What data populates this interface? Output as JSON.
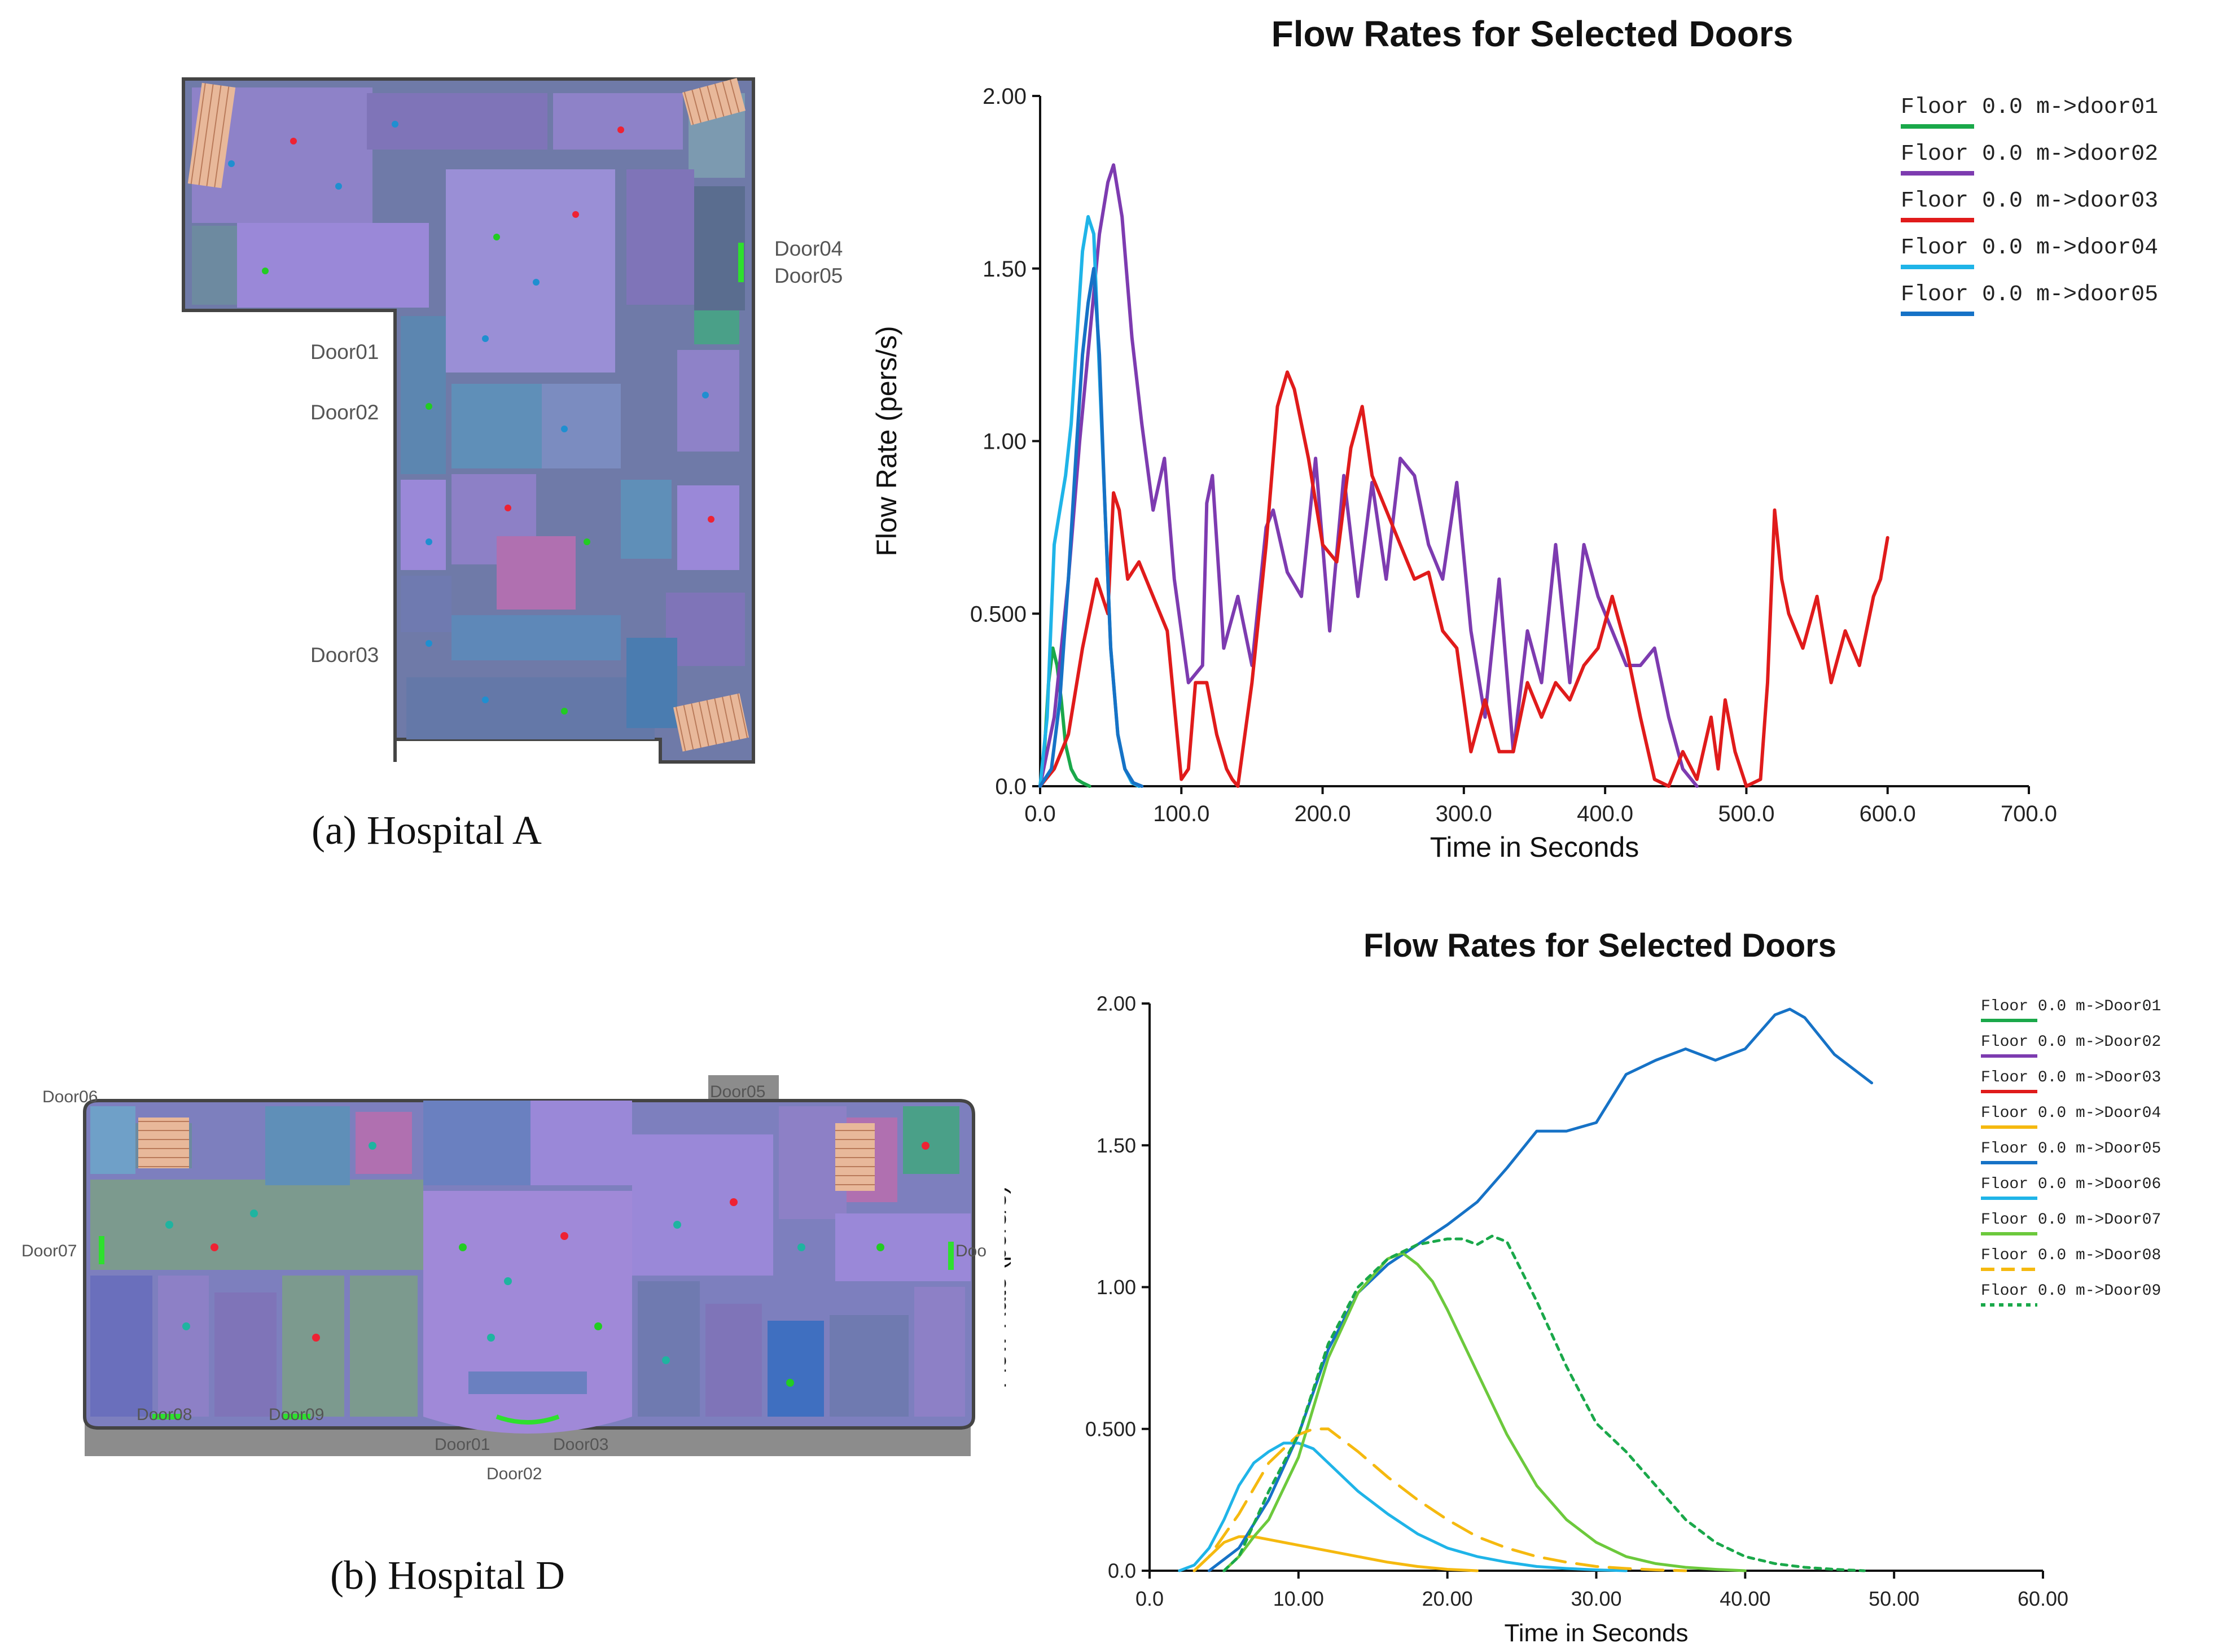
{
  "captions": {
    "a": "(a) Hospital A",
    "b": "(b) Hospital D"
  },
  "plan_a": {
    "door_labels": [
      "Door01",
      "Door02",
      "Door03",
      "Door04",
      "Door05"
    ]
  },
  "plan_b": {
    "door_labels": [
      "Door06",
      "Door05",
      "Door07",
      "Door08",
      "Door09",
      "Door01",
      "Door03",
      "Door02",
      "Doo"
    ]
  },
  "colors": {
    "door01": "#1aa84a",
    "door02": "#7d3bb0",
    "door03": "#e01b1b",
    "door04a": "#1fb4e8",
    "door05a": "#1672c6",
    "door04b": "#f5b90f",
    "door05b": "#1672c6",
    "door06b": "#1fb4e8",
    "door07b": "#6cc93c",
    "door08b": "#f5b90f",
    "door09b": "#1aa84a"
  },
  "chart_data": [
    {
      "type": "line",
      "title": "Flow Rates for Selected Doors",
      "xlabel": "Time in Seconds",
      "ylabel": "Flow Rate (pers/s)",
      "xlim": [
        0,
        700
      ],
      "ylim": [
        0,
        2
      ],
      "xticks": [
        "0.0",
        "100.0",
        "200.0",
        "300.0",
        "400.0",
        "500.0",
        "600.0",
        "700.0"
      ],
      "yticks": [
        "0.0",
        "0.500",
        "1.00",
        "1.50",
        "2.00"
      ],
      "legend_position": "top-right",
      "series": [
        {
          "name": "Floor 0.0 m->door01",
          "color": "#1aa84a",
          "style": "solid",
          "x": [
            0,
            3,
            6,
            9,
            12,
            15,
            18,
            22,
            26,
            30,
            35
          ],
          "y": [
            0,
            0.1,
            0.3,
            0.4,
            0.35,
            0.25,
            0.12,
            0.05,
            0.02,
            0.01,
            0
          ]
        },
        {
          "name": "Floor 0.0 m->door02",
          "color": "#7d3bb0",
          "style": "solid",
          "x": [
            0,
            10,
            20,
            28,
            35,
            42,
            48,
            52,
            58,
            65,
            72,
            80,
            88,
            95,
            105,
            115,
            118,
            122,
            130,
            140,
            150,
            160,
            165,
            175,
            185,
            195,
            205,
            215,
            225,
            235,
            245,
            255,
            265,
            275,
            285,
            295,
            305,
            315,
            325,
            335,
            345,
            355,
            365,
            375,
            385,
            395,
            405,
            415,
            425,
            435,
            445,
            455,
            465
          ],
          "y": [
            0,
            0.2,
            0.6,
            1.0,
            1.3,
            1.6,
            1.75,
            1.8,
            1.65,
            1.3,
            1.05,
            0.8,
            0.95,
            0.6,
            0.3,
            0.35,
            0.82,
            0.9,
            0.4,
            0.55,
            0.35,
            0.75,
            0.8,
            0.62,
            0.55,
            0.95,
            0.45,
            0.9,
            0.55,
            0.88,
            0.6,
            0.95,
            0.9,
            0.7,
            0.6,
            0.88,
            0.45,
            0.2,
            0.6,
            0.1,
            0.45,
            0.3,
            0.7,
            0.3,
            0.7,
            0.55,
            0.45,
            0.35,
            0.35,
            0.4,
            0.2,
            0.05,
            0
          ]
        },
        {
          "name": "Floor 0.0 m->door03",
          "color": "#e01b1b",
          "style": "solid",
          "x": [
            0,
            10,
            20,
            30,
            40,
            48,
            52,
            56,
            62,
            70,
            80,
            90,
            100,
            105,
            110,
            118,
            125,
            132,
            136,
            140,
            150,
            160,
            168,
            175,
            180,
            190,
            200,
            210,
            220,
            228,
            235,
            245,
            255,
            265,
            275,
            285,
            295,
            305,
            315,
            325,
            335,
            345,
            355,
            365,
            375,
            385,
            395,
            405,
            415,
            425,
            435,
            445,
            455,
            465,
            475,
            480,
            485,
            492,
            500,
            510,
            515,
            520,
            525,
            530,
            540,
            550,
            560,
            570,
            580,
            590,
            595,
            600
          ],
          "y": [
            0,
            0.05,
            0.15,
            0.4,
            0.6,
            0.5,
            0.85,
            0.8,
            0.6,
            0.65,
            0.55,
            0.45,
            0.02,
            0.05,
            0.3,
            0.3,
            0.15,
            0.05,
            0.02,
            0,
            0.3,
            0.7,
            1.1,
            1.2,
            1.15,
            0.95,
            0.7,
            0.65,
            0.98,
            1.1,
            0.9,
            0.8,
            0.7,
            0.6,
            0.62,
            0.45,
            0.4,
            0.1,
            0.25,
            0.1,
            0.1,
            0.3,
            0.2,
            0.3,
            0.25,
            0.35,
            0.4,
            0.55,
            0.4,
            0.2,
            0.02,
            0,
            0.1,
            0.02,
            0.2,
            0.05,
            0.25,
            0.1,
            0,
            0.02,
            0.3,
            0.8,
            0.6,
            0.5,
            0.4,
            0.55,
            0.3,
            0.45,
            0.35,
            0.55,
            0.6,
            0.72
          ]
        },
        {
          "name": "Floor 0.0 m->door04",
          "color": "#1fb4e8",
          "style": "solid",
          "x": [
            0,
            5,
            10,
            14,
            18,
            22,
            26,
            30,
            34,
            38,
            42,
            46,
            50,
            55,
            60,
            65,
            70
          ],
          "y": [
            0,
            0.2,
            0.7,
            0.8,
            0.9,
            1.05,
            1.3,
            1.55,
            1.65,
            1.6,
            1.2,
            0.8,
            0.4,
            0.15,
            0.05,
            0.01,
            0
          ]
        },
        {
          "name": "Floor 0.0 m->door05",
          "color": "#1672c6",
          "style": "solid",
          "x": [
            0,
            8,
            14,
            20,
            26,
            30,
            34,
            38,
            42,
            46,
            50,
            55,
            60,
            66,
            72
          ],
          "y": [
            0,
            0.05,
            0.25,
            0.6,
            1.0,
            1.25,
            1.4,
            1.5,
            1.25,
            0.8,
            0.4,
            0.15,
            0.05,
            0.01,
            0
          ]
        }
      ]
    },
    {
      "type": "line",
      "title": "Flow Rates for Selected Doors",
      "xlabel": "Time in Seconds",
      "ylabel": "Flow Rate (pers/s)",
      "xlim": [
        0,
        60
      ],
      "ylim": [
        0,
        2
      ],
      "xticks": [
        "0.0",
        "10.00",
        "20.00",
        "30.00",
        "40.00",
        "50.00",
        "60.00"
      ],
      "yticks": [
        "0.0",
        "0.500",
        "1.00",
        "1.50",
        "2.00"
      ],
      "legend_position": "top-right",
      "series": [
        {
          "name": "Floor 0.0 m->Door01",
          "color": "#1aa84a",
          "style": "solid",
          "x": [],
          "y": []
        },
        {
          "name": "Floor 0.0 m->Door02",
          "color": "#7d3bb0",
          "style": "solid",
          "x": [],
          "y": []
        },
        {
          "name": "Floor 0.0 m->Door03",
          "color": "#e01b1b",
          "style": "solid",
          "x": [],
          "y": []
        },
        {
          "name": "Floor 0.0 m->Door04",
          "color": "#f5b90f",
          "style": "solid",
          "x": [
            3,
            4,
            5,
            6,
            7,
            8,
            10,
            12,
            14,
            16,
            18,
            20,
            22
          ],
          "y": [
            0,
            0.05,
            0.1,
            0.12,
            0.12,
            0.11,
            0.09,
            0.07,
            0.05,
            0.03,
            0.015,
            0.005,
            0
          ]
        },
        {
          "name": "Floor 0.0 m->Door05",
          "color": "#1672c6",
          "style": "solid",
          "x": [
            4,
            6,
            8,
            10,
            12,
            14,
            16,
            18,
            20,
            22,
            24,
            26,
            28,
            30,
            32,
            34,
            36,
            38,
            40,
            42,
            43,
            44,
            46,
            48.5
          ],
          "y": [
            0,
            0.08,
            0.25,
            0.48,
            0.78,
            0.98,
            1.08,
            1.15,
            1.22,
            1.3,
            1.42,
            1.55,
            1.55,
            1.58,
            1.75,
            1.8,
            1.84,
            1.8,
            1.84,
            1.96,
            1.98,
            1.95,
            1.82,
            1.72
          ]
        },
        {
          "name": "Floor 0.0 m->Door06",
          "color": "#1fb4e8",
          "style": "solid",
          "x": [
            2,
            3,
            4,
            5,
            6,
            7,
            8,
            9,
            10,
            11,
            12,
            14,
            16,
            18,
            20,
            22,
            24,
            26,
            28,
            30,
            32
          ],
          "y": [
            0,
            0.02,
            0.08,
            0.18,
            0.3,
            0.38,
            0.42,
            0.45,
            0.45,
            0.43,
            0.38,
            0.28,
            0.2,
            0.13,
            0.08,
            0.05,
            0.03,
            0.015,
            0.008,
            0.003,
            0
          ]
        },
        {
          "name": "Floor 0.0 m->Door07",
          "color": "#6cc93c",
          "style": "solid",
          "x": [
            5,
            6,
            7,
            8,
            10,
            12,
            14,
            16,
            17,
            18,
            19,
            20,
            22,
            24,
            26,
            28,
            30,
            32,
            34,
            36,
            38,
            40
          ],
          "y": [
            0,
            0.05,
            0.12,
            0.18,
            0.4,
            0.75,
            0.98,
            1.1,
            1.12,
            1.08,
            1.02,
            0.92,
            0.7,
            0.48,
            0.3,
            0.18,
            0.1,
            0.05,
            0.025,
            0.012,
            0.005,
            0
          ]
        },
        {
          "name": "Floor 0.0 m->Door08",
          "color": "#f5b90f",
          "style": "dash",
          "x": [
            3,
            4,
            6,
            8,
            10,
            11,
            12,
            14,
            16,
            18,
            20,
            22,
            24,
            26,
            28,
            30,
            32,
            34,
            36
          ],
          "y": [
            0,
            0.05,
            0.2,
            0.38,
            0.48,
            0.5,
            0.5,
            0.42,
            0.33,
            0.25,
            0.18,
            0.12,
            0.08,
            0.05,
            0.03,
            0.015,
            0.008,
            0.003,
            0
          ]
        },
        {
          "name": "Floor 0.0 m->Door09",
          "color": "#1aa84a",
          "style": "dot",
          "x": [
            5,
            6,
            8,
            10,
            12,
            14,
            16,
            18,
            20,
            21,
            22,
            23,
            24,
            26,
            28,
            30,
            32,
            34,
            36,
            38,
            40,
            42,
            44,
            46,
            48
          ],
          "y": [
            0,
            0.05,
            0.28,
            0.48,
            0.8,
            1.0,
            1.1,
            1.15,
            1.17,
            1.17,
            1.15,
            1.18,
            1.16,
            0.95,
            0.72,
            0.52,
            0.42,
            0.3,
            0.18,
            0.1,
            0.05,
            0.025,
            0.012,
            0.005,
            0
          ]
        }
      ]
    }
  ]
}
